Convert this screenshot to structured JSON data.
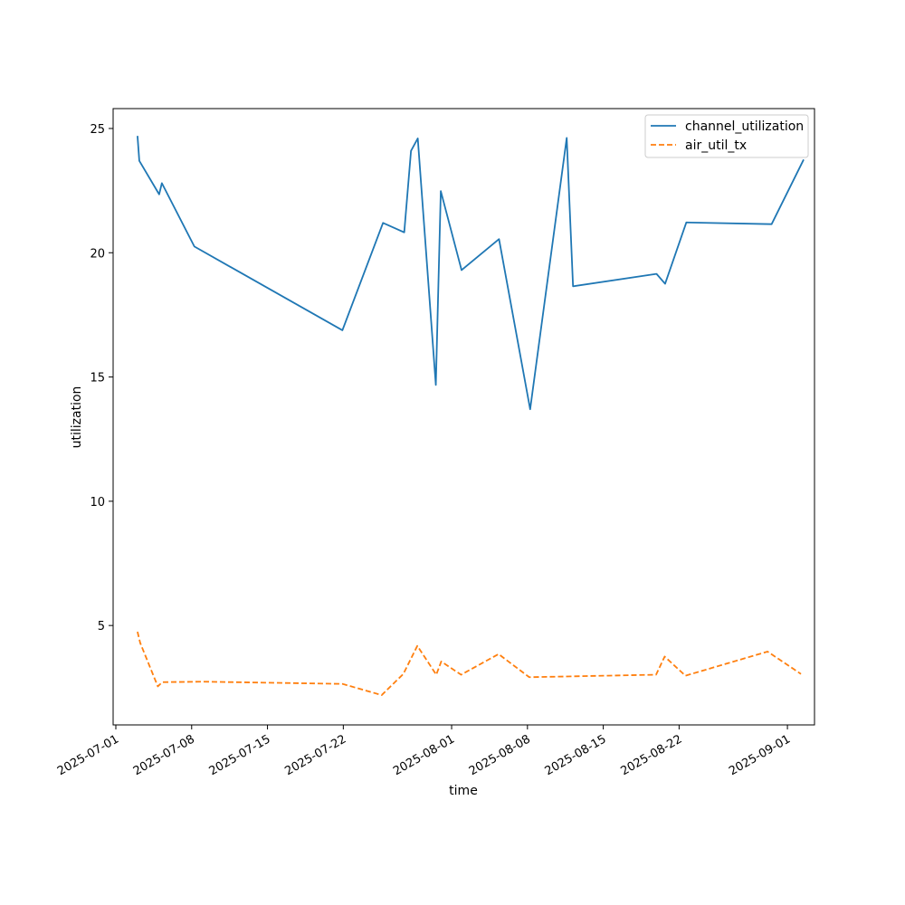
{
  "chart_data": {
    "type": "line",
    "title": "",
    "xlabel": "time",
    "ylabel": "utilization",
    "x_axis": {
      "type": "date",
      "range": [
        "2025-06-30T18:00",
        "2025-09-03T12:00"
      ],
      "ticks": [
        "2025-07-01",
        "2025-07-08",
        "2025-07-15",
        "2025-07-22",
        "2025-08-01",
        "2025-08-08",
        "2025-08-15",
        "2025-08-22",
        "2025-09-01"
      ]
    },
    "y_axis": {
      "range": [
        1.0,
        25.8
      ],
      "ticks": [
        5,
        10,
        15,
        20,
        25
      ]
    },
    "grid": false,
    "legend": "top-right",
    "series": [
      {
        "name": "channel_utilization",
        "color": "#1f77b4",
        "dash": "solid",
        "points": [
          [
            "2025-07-03T00:00",
            24.7
          ],
          [
            "2025-07-03T04:00",
            23.7
          ],
          [
            "2025-07-05T00:00",
            22.35
          ],
          [
            "2025-07-05T06:00",
            22.8
          ],
          [
            "2025-07-08T06:00",
            20.25
          ],
          [
            "2025-07-21T22:00",
            16.88
          ],
          [
            "2025-07-25T16:00",
            21.2
          ],
          [
            "2025-07-27T15:00",
            20.82
          ],
          [
            "2025-07-28T06:00",
            24.1
          ],
          [
            "2025-07-28T21:00",
            24.6
          ],
          [
            "2025-07-30T13:00",
            14.68
          ],
          [
            "2025-07-31T00:00",
            22.48
          ],
          [
            "2025-08-01T22:00",
            19.3
          ],
          [
            "2025-08-05T09:00",
            20.55
          ],
          [
            "2025-08-08T06:00",
            13.7
          ],
          [
            "2025-08-11T15:00",
            24.62
          ],
          [
            "2025-08-12T05:00",
            18.65
          ],
          [
            "2025-08-19T22:00",
            19.15
          ],
          [
            "2025-08-20T17:00",
            18.75
          ],
          [
            "2025-08-22T16:00",
            21.22
          ],
          [
            "2025-08-30T13:00",
            21.15
          ],
          [
            "2025-09-02T12:00",
            23.75
          ]
        ]
      },
      {
        "name": "air_util_tx",
        "color": "#ff7f0e",
        "dash": "dashed",
        "points": [
          [
            "2025-07-03T00:00",
            4.75
          ],
          [
            "2025-07-03T06:00",
            4.3
          ],
          [
            "2025-07-04T21:00",
            2.55
          ],
          [
            "2025-07-05T07:00",
            2.72
          ],
          [
            "2025-07-09T00:00",
            2.74
          ],
          [
            "2025-07-21T22:00",
            2.65
          ],
          [
            "2025-07-25T13:00",
            2.2
          ],
          [
            "2025-07-27T13:00",
            3.05
          ],
          [
            "2025-07-28T20:00",
            4.18
          ],
          [
            "2025-07-30T14:00",
            3.02
          ],
          [
            "2025-07-31T01:00",
            3.55
          ],
          [
            "2025-08-01T21:00",
            3.02
          ],
          [
            "2025-08-05T08:00",
            3.85
          ],
          [
            "2025-08-08T04:00",
            2.92
          ],
          [
            "2025-08-19T21:00",
            3.02
          ],
          [
            "2025-08-20T16:00",
            3.75
          ],
          [
            "2025-08-22T14:00",
            2.98
          ],
          [
            "2025-08-30T04:00",
            3.95
          ],
          [
            "2025-09-02T06:00",
            3.05
          ]
        ]
      }
    ]
  }
}
